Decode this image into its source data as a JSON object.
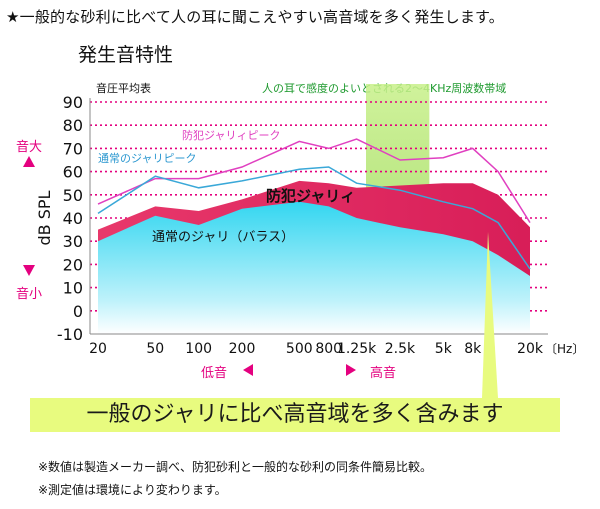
{
  "headline": "★一般的な砂利に比べて人の耳に聞こえやすい高音域を多く発生します。",
  "title": "発生音特性",
  "chart_label": "音圧平均表",
  "band_label": "人の耳で感度のよいとされる2～4KHz周波数帯域",
  "callout": "一般のジャリに比べ高音域を多く含みます",
  "notes": [
    "※数値は製造メーカー調べ、防犯砂利と一般的な砂利の同条件簡易比較。",
    "※測定値は環境により変わります。"
  ],
  "side": {
    "up": "音大",
    "down": "音小"
  },
  "direction": {
    "low": "低音",
    "high": "高音"
  },
  "colors": {
    "accent_pink": "#e4007f",
    "green_band": "#9be23a",
    "callout_bg": "#e8fb7f",
    "cyan_area": "#33d6f0",
    "crimson_area": "#e8386b"
  },
  "chart_data": {
    "type": "area",
    "xlabel": "",
    "ylabel": "dB SPL",
    "x_unit": "〔Hz〕",
    "ylim": [
      -10,
      90
    ],
    "yticks": [
      90,
      80,
      70,
      60,
      50,
      40,
      30,
      20,
      10,
      0,
      -10
    ],
    "x_ticks": [
      "20",
      "50",
      "100",
      "200",
      "500",
      "800",
      "1.25k",
      "2.5k",
      "5k",
      "8k",
      "20k"
    ],
    "x_positions": [
      20,
      50,
      100,
      200,
      500,
      800,
      1250,
      2500,
      5000,
      8000,
      20000
    ],
    "grid": true,
    "highlight_band_hz": [
      2000,
      4000
    ],
    "series": [
      {
        "name": "防犯ジャリィピーク",
        "kind": "line",
        "color": "#e040c0",
        "points": [
          [
            20,
            46
          ],
          [
            50,
            57
          ],
          [
            100,
            57
          ],
          [
            200,
            62
          ],
          [
            500,
            73
          ],
          [
            800,
            70
          ],
          [
            1250,
            74
          ],
          [
            2500,
            65
          ],
          [
            5000,
            66
          ],
          [
            8000,
            70
          ],
          [
            12000,
            60
          ],
          [
            20000,
            38
          ]
        ]
      },
      {
        "name": "通常のジャリピーク",
        "kind": "line",
        "color": "#3aa8d8",
        "points": [
          [
            20,
            42
          ],
          [
            50,
            58
          ],
          [
            100,
            53
          ],
          [
            200,
            56
          ],
          [
            500,
            61
          ],
          [
            800,
            62
          ],
          [
            1250,
            55
          ],
          [
            2500,
            52
          ],
          [
            5000,
            47
          ],
          [
            8000,
            44
          ],
          [
            12000,
            38
          ],
          [
            20000,
            18
          ]
        ]
      },
      {
        "name": "防犯ジャリィ",
        "kind": "area",
        "color": "#e8386b",
        "points": [
          [
            20,
            35
          ],
          [
            50,
            45
          ],
          [
            100,
            43
          ],
          [
            200,
            48
          ],
          [
            500,
            56
          ],
          [
            800,
            55
          ],
          [
            1250,
            53
          ],
          [
            2500,
            54
          ],
          [
            5000,
            55
          ],
          [
            8000,
            55
          ],
          [
            12000,
            50
          ],
          [
            20000,
            36
          ]
        ]
      },
      {
        "name": "通常のジャリ（バラス）",
        "kind": "area",
        "color": "#33d6f0",
        "points": [
          [
            20,
            30
          ],
          [
            50,
            41
          ],
          [
            100,
            37
          ],
          [
            200,
            44
          ],
          [
            500,
            47
          ],
          [
            800,
            45
          ],
          [
            1250,
            40
          ],
          [
            2500,
            36
          ],
          [
            5000,
            33
          ],
          [
            8000,
            30
          ],
          [
            12000,
            24
          ],
          [
            20000,
            15
          ]
        ]
      }
    ]
  }
}
